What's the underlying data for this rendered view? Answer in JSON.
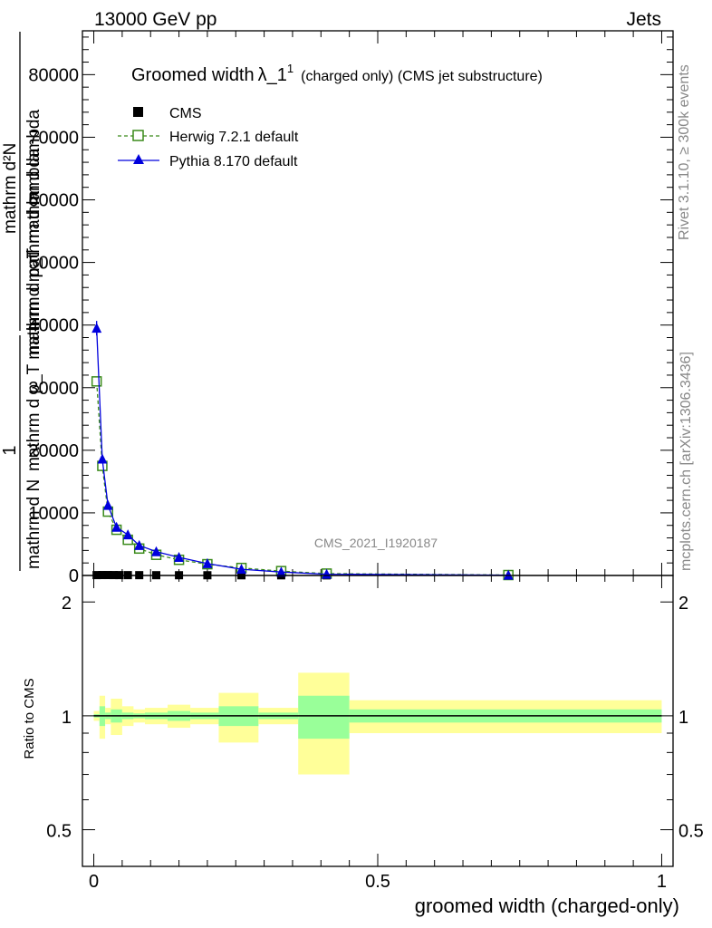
{
  "header": {
    "left": "13000 GeV pp",
    "right": "Jets"
  },
  "side_labels": {
    "rivet": "Rivet 3.1.10, ≥ 300k events",
    "mcplots": "mcplots.cern.ch [arXiv:1306.3436]"
  },
  "watermark": "CMS_2021_I1920187",
  "chart_data": [
    {
      "type": "line",
      "title_main": "Groomed width",
      "title_lambda": "λ_1",
      "title_sup": "1",
      "title_suffix": "(charged only) (CMS jet substructure)",
      "ylabel_fraction_num": "1",
      "ylabel_fraction_den": "mathrm d N",
      "ylabel_overlap_1": "mathrm d²N",
      "ylabel_overlap_2": "mathrm d p_T mathrm d lambda",
      "ylabel_overlap_3": "mathrm d p_T mathrm d mathrm d lambda",
      "ylim": [
        0,
        87000
      ],
      "xlim": [
        -0.02,
        1.02
      ],
      "ytick_values": [
        0,
        10000,
        20000,
        30000,
        40000,
        50000,
        60000,
        70000,
        80000
      ],
      "ytick_labels": [
        "0",
        "10000",
        "20000",
        "30000",
        "40000",
        "50000",
        "60000",
        "70000",
        "80000"
      ],
      "legend_position": "top-left",
      "series": [
        {
          "name": "CMS",
          "color": "#000000",
          "marker": "square-filled",
          "x": [
            0.005,
            0.015,
            0.025,
            0.035,
            0.045,
            0.06,
            0.08,
            0.11,
            0.15,
            0.2,
            0.26,
            0.33,
            0.41,
            0.73
          ],
          "values": [
            60,
            70,
            70,
            65,
            60,
            55,
            50,
            45,
            40,
            35,
            30,
            25,
            20,
            10
          ]
        },
        {
          "name": "Herwig 7.2.1 default",
          "color": "#3a8a1a",
          "marker": "square-open",
          "line": "dashed",
          "x": [
            0.005,
            0.015,
            0.025,
            0.04,
            0.06,
            0.08,
            0.11,
            0.15,
            0.2,
            0.26,
            0.33,
            0.41,
            0.73
          ],
          "values": [
            31000,
            17500,
            10200,
            7300,
            5700,
            4300,
            3300,
            2500,
            1800,
            1200,
            700,
            300,
            70
          ]
        },
        {
          "name": "Pythia 8.170 default",
          "color": "#0000dd",
          "marker": "triangle-filled",
          "line": "solid",
          "x": [
            0.005,
            0.015,
            0.025,
            0.04,
            0.06,
            0.08,
            0.11,
            0.15,
            0.2,
            0.26,
            0.33,
            0.41,
            0.73
          ],
          "values": [
            39500,
            18600,
            11200,
            7700,
            6500,
            4800,
            3800,
            2900,
            1900,
            1000,
            550,
            200,
            50
          ]
        }
      ],
      "xtick_labels_hidden": true
    },
    {
      "type": "area",
      "ylabel": "Ratio to CMS",
      "xlabel": "groomed width (charged-only)",
      "ylim": [
        0.4,
        2.35
      ],
      "ytick_values": [
        0.5,
        1,
        2
      ],
      "ytick_labels": [
        "0.5",
        "1",
        "2"
      ],
      "xtick_values": [
        0,
        0.5,
        1
      ],
      "xtick_labels": [
        "0",
        "0.5",
        "1"
      ],
      "reference": 1,
      "bands": {
        "stat_color": "#99ff99",
        "total_color": "#ffff99",
        "bins": [
          {
            "x0": 0.0,
            "x1": 0.01,
            "stat": 0.01,
            "total": 0.03
          },
          {
            "x0": 0.01,
            "x1": 0.02,
            "stat": 0.06,
            "total": 0.13
          },
          {
            "x0": 0.02,
            "x1": 0.03,
            "stat": 0.02,
            "total": 0.05
          },
          {
            "x0": 0.03,
            "x1": 0.05,
            "stat": 0.04,
            "total": 0.11
          },
          {
            "x0": 0.05,
            "x1": 0.07,
            "stat": 0.02,
            "total": 0.06
          },
          {
            "x0": 0.07,
            "x1": 0.09,
            "stat": 0.015,
            "total": 0.04
          },
          {
            "x0": 0.09,
            "x1": 0.13,
            "stat": 0.02,
            "total": 0.05
          },
          {
            "x0": 0.13,
            "x1": 0.17,
            "stat": 0.03,
            "total": 0.07
          },
          {
            "x0": 0.17,
            "x1": 0.22,
            "stat": 0.02,
            "total": 0.05
          },
          {
            "x0": 0.22,
            "x1": 0.29,
            "stat": 0.06,
            "total": 0.15
          },
          {
            "x0": 0.29,
            "x1": 0.36,
            "stat": 0.02,
            "total": 0.05
          },
          {
            "x0": 0.36,
            "x1": 0.45,
            "stat": 0.13,
            "total": 0.3
          },
          {
            "x0": 0.45,
            "x1": 1.0,
            "stat": 0.04,
            "total": 0.1
          }
        ]
      }
    }
  ]
}
